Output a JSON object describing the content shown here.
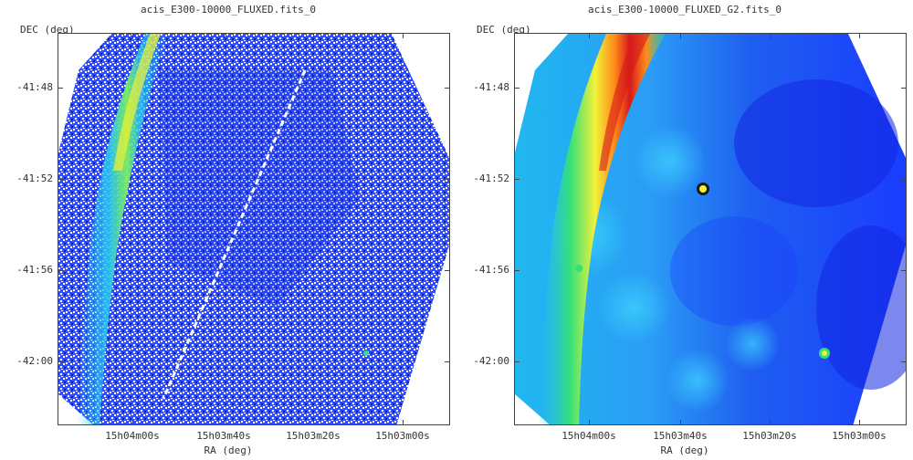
{
  "panels": [
    {
      "title": "acis_E300-10000_FLUXED.fits_0",
      "ylabel": "DEC (deg)",
      "xlabel": "RA (deg)",
      "yticks": [
        "-41:48",
        "-41:52",
        "-41:56",
        "-42:00"
      ],
      "xticks": [
        "15h04m00s",
        "15h03m40s",
        "15h03m20s",
        "15h03m00s"
      ]
    },
    {
      "title": "acis_E300-10000_FLUXED_G2.fits_0",
      "ylabel": "DEC (deg)",
      "xlabel": "RA (deg)",
      "yticks": [
        "-41:48",
        "-41:52",
        "-41:56",
        "-42:00"
      ],
      "xticks": [
        "15h04m00s",
        "15h03m40s",
        "15h03m20s",
        "15h03m00s"
      ]
    }
  ],
  "colors": {
    "background_blue": "#1a3cff",
    "deep_blue": "#0a1fd6",
    "cyan": "#27c7f0",
    "green": "#33e07a",
    "yellow": "#f2f23a",
    "orange": "#ff8c1a",
    "red": "#d61a1a"
  }
}
